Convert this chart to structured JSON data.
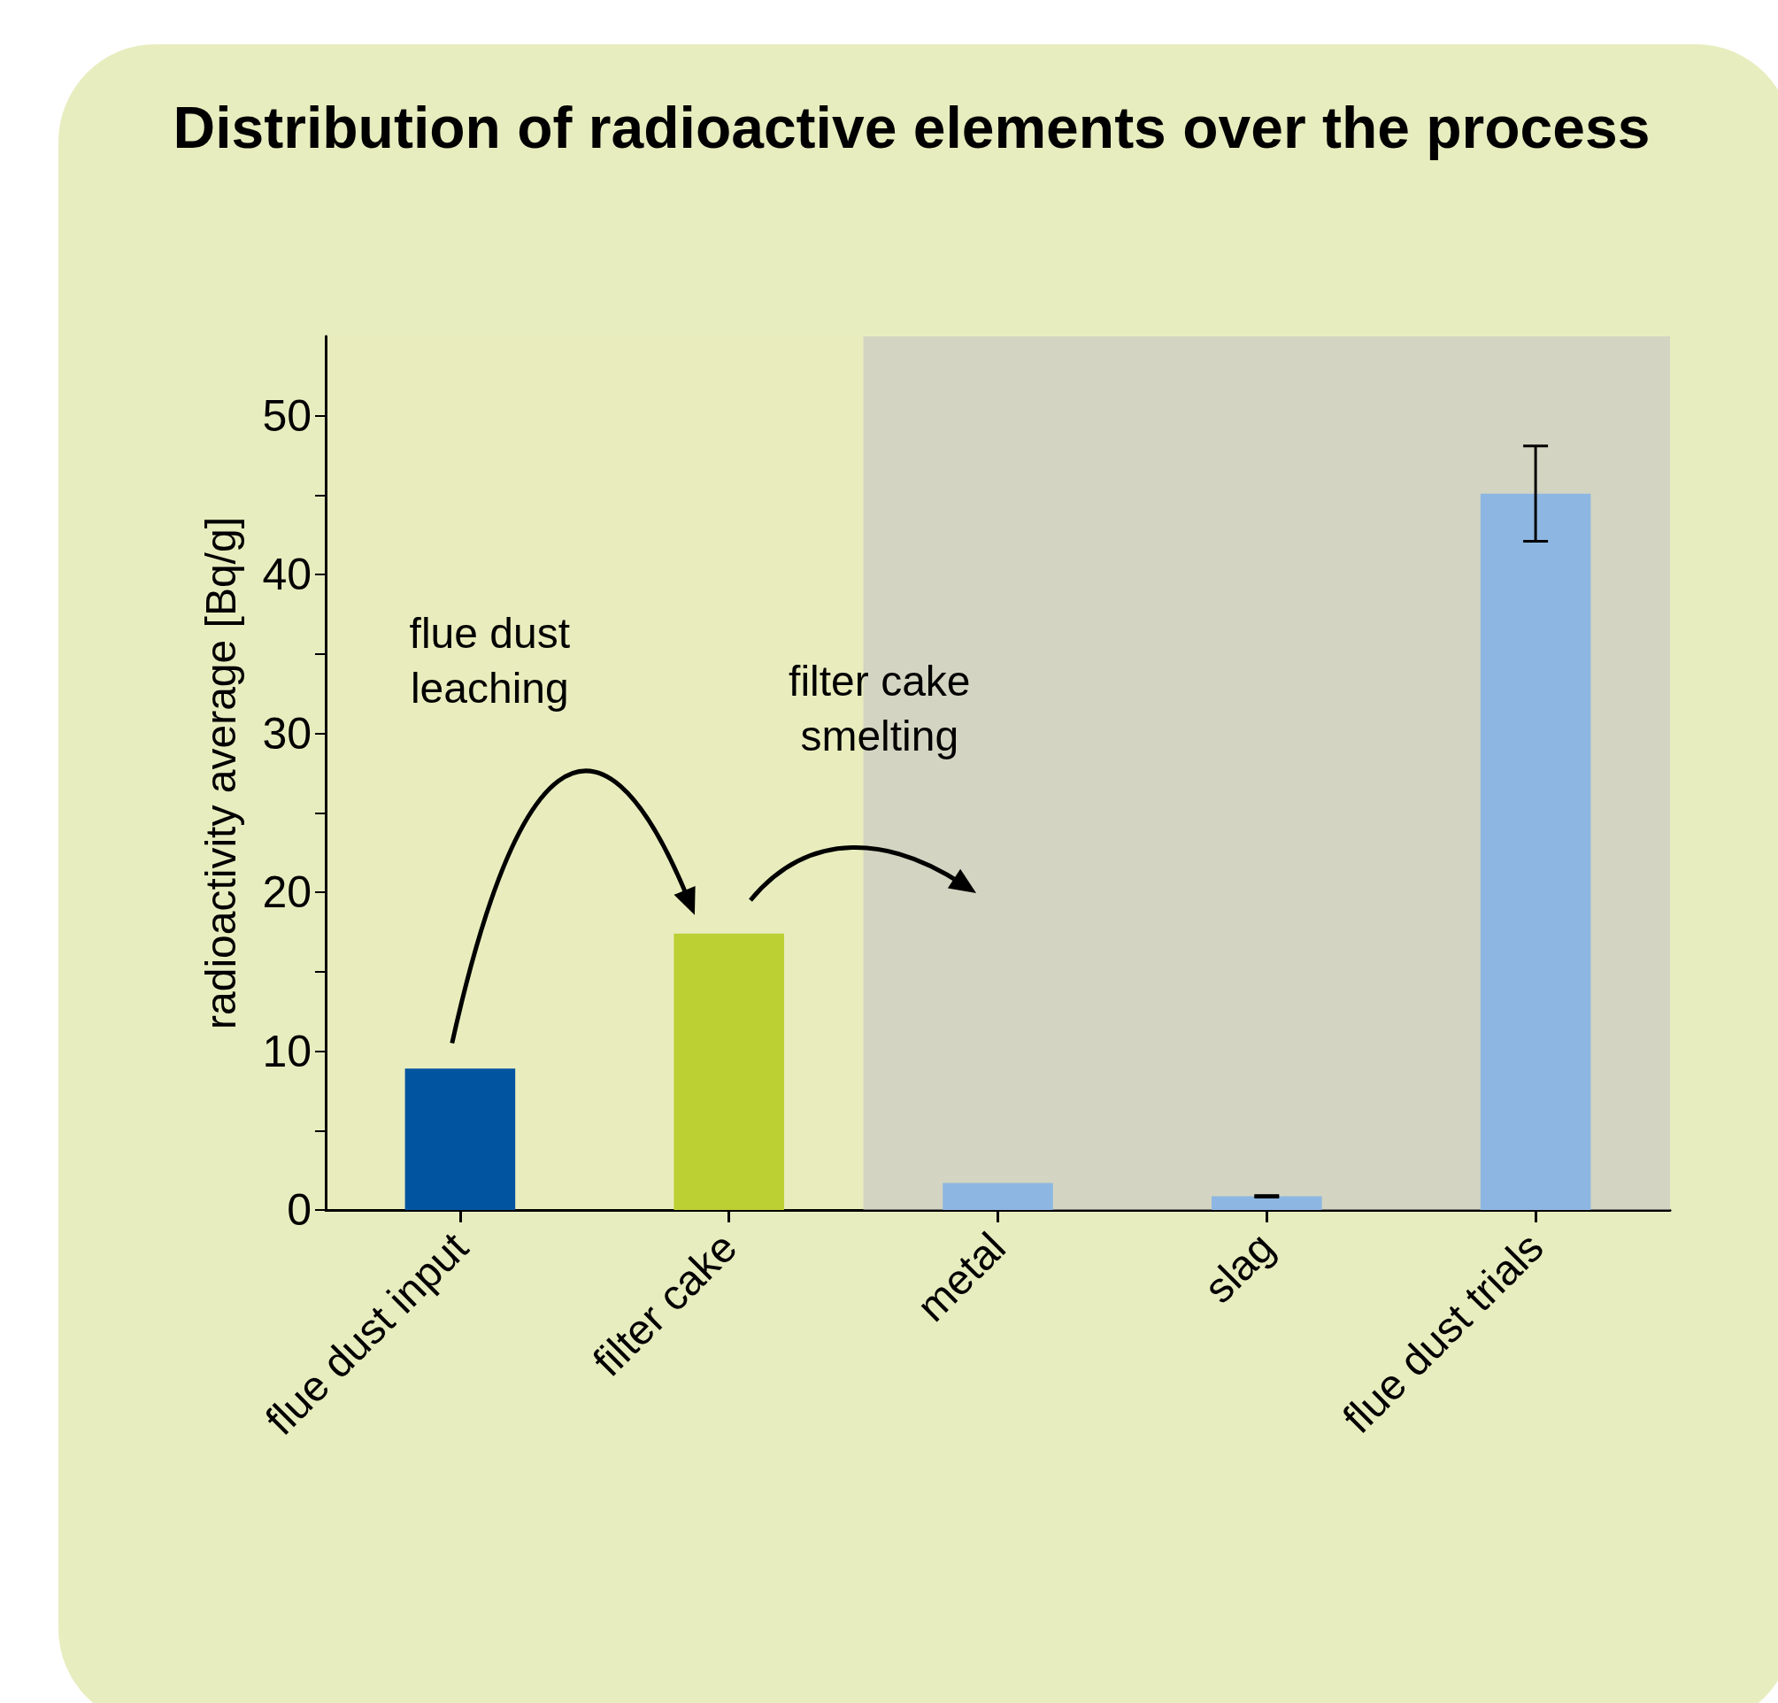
{
  "chart_data": {
    "type": "bar",
    "title": "Distribution of radioactive elements over the process",
    "ylabel": "radioactivity average [Bq/g]",
    "categories": [
      "flue dust input",
      "filter cake",
      "metal",
      "slag",
      "flue dust trials"
    ],
    "values": [
      8.9,
      17.4,
      1.7,
      0.86,
      45.1
    ],
    "colors": [
      "#0054a0",
      "#bccf33",
      "#8db7e2",
      "#8db7e2",
      "#8db7e2"
    ],
    "errors": [
      null,
      null,
      null,
      0.05,
      3
    ],
    "ylim": [
      0,
      55
    ],
    "yticks": [
      0,
      {
        "value": 5,
        "label": null
      },
      10,
      {
        "value": 15,
        "label": null
      },
      20,
      {
        "value": 25,
        "label": null
      },
      30,
      {
        "value": 35,
        "label": null
      },
      40,
      {
        "value": 45,
        "label": null
      },
      50
    ],
    "bands": [
      {
        "axis": "x",
        "from": "metal",
        "to": "flue dust trials",
        "color": "#c4c4c4"
      }
    ],
    "annotations": [
      "flue dust leaching",
      "filter cake smelting"
    ],
    "grid": false
  }
}
